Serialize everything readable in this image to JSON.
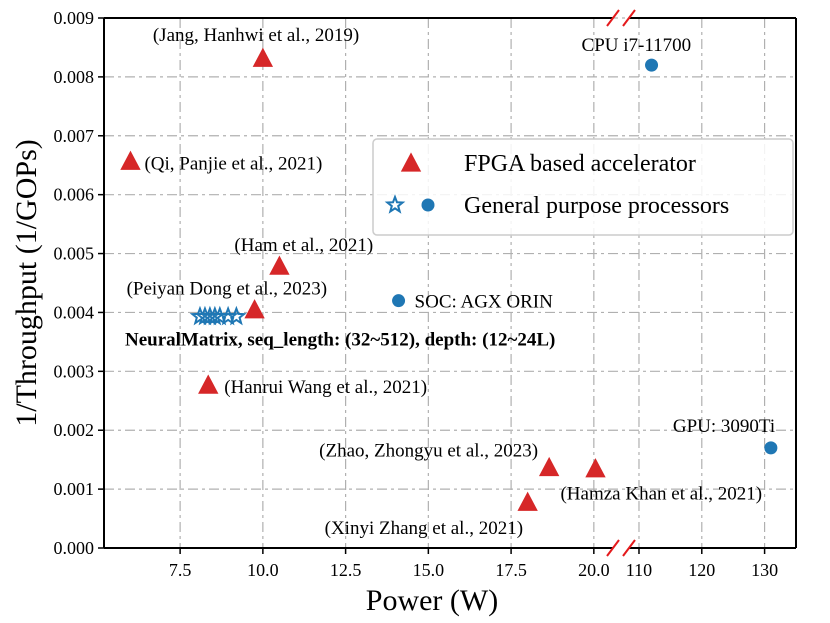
{
  "chart_data": {
    "type": "scatter",
    "xlabel": "Power (W)",
    "ylabel": "1/Throughput (1/GOPs)",
    "grid": true,
    "broken_x_axis": true,
    "x_segments": [
      {
        "range": [
          5.2,
          20.7
        ],
        "ticks": [
          7.5,
          10.0,
          12.5,
          15.0,
          17.5,
          20.0
        ],
        "tick_labels": [
          "7.5",
          "10.0",
          "12.5",
          "15.0",
          "17.5",
          "20.0"
        ]
      },
      {
        "range": [
          106.5,
          135
        ],
        "ticks": [
          110,
          120,
          130
        ],
        "tick_labels": [
          "110",
          "120",
          "130"
        ]
      }
    ],
    "ylim": [
      0.0,
      0.009
    ],
    "y_ticks": [
      0.0,
      0.001,
      0.002,
      0.003,
      0.004,
      0.005,
      0.006,
      0.007,
      0.008,
      0.009
    ],
    "y_tick_labels": [
      "0.000",
      "0.001",
      "0.002",
      "0.003",
      "0.004",
      "0.005",
      "0.006",
      "0.007",
      "0.008",
      "0.009"
    ],
    "legend": {
      "location": "upper-right",
      "entries": [
        {
          "label": "FPGA based accelerator",
          "markers": [
            "triangle"
          ],
          "color": "#d62728"
        },
        {
          "label": "General purpose processors",
          "markers": [
            "star",
            "circle"
          ],
          "color": "#1f77b4"
        }
      ]
    },
    "series": [
      {
        "name": "FPGA based accelerator",
        "marker": "triangle",
        "color": "#d62728",
        "points": [
          {
            "x": 10.0,
            "y": 0.0083,
            "label": "(Jang, Hanhwi et al., 2019)"
          },
          {
            "x": 6.0,
            "y": 0.00655,
            "label": "(Qi, Panjie et al., 2021)"
          },
          {
            "x": 10.5,
            "y": 0.00477,
            "label": "(Ham et al., 2021)"
          },
          {
            "x": 9.75,
            "y": 0.00403,
            "label": "(Peiyan Dong et al., 2023)"
          },
          {
            "x": 8.35,
            "y": 0.00275,
            "label": "(Hanrui Wang et al., 2021)"
          },
          {
            "x": 18.65,
            "y": 0.00135,
            "label": "(Zhao, Zhongyu et al., 2023)"
          },
          {
            "x": 20.05,
            "y": 0.00133,
            "label": "(Hamza Khan et al., 2021)"
          },
          {
            "x": 18.0,
            "y": 0.00076,
            "label": "(Xinyi Zhang et al., 2021)"
          }
        ]
      },
      {
        "name": "General purpose processors",
        "marker": "circle",
        "color": "#1f77b4",
        "points": [
          {
            "x": 112,
            "y": 0.0082,
            "label": "CPU i7-11700"
          },
          {
            "x": 14.1,
            "y": 0.0042,
            "label": "SOC: AGX ORIN"
          },
          {
            "x": 131,
            "y": 0.0017,
            "label": "GPU: 3090Ti"
          }
        ]
      },
      {
        "name": "NeuralMatrix",
        "marker": "star",
        "color": "#1f77b4",
        "label": "NeuralMatrix, seq_length: (32~512), depth: (12~24L)",
        "points": [
          {
            "x": 8.1,
            "y": 0.00393
          },
          {
            "x": 8.25,
            "y": 0.00393
          },
          {
            "x": 8.4,
            "y": 0.00393
          },
          {
            "x": 8.55,
            "y": 0.00393
          },
          {
            "x": 8.7,
            "y": 0.00393
          },
          {
            "x": 8.95,
            "y": 0.00393
          },
          {
            "x": 9.2,
            "y": 0.00393
          }
        ]
      }
    ]
  }
}
